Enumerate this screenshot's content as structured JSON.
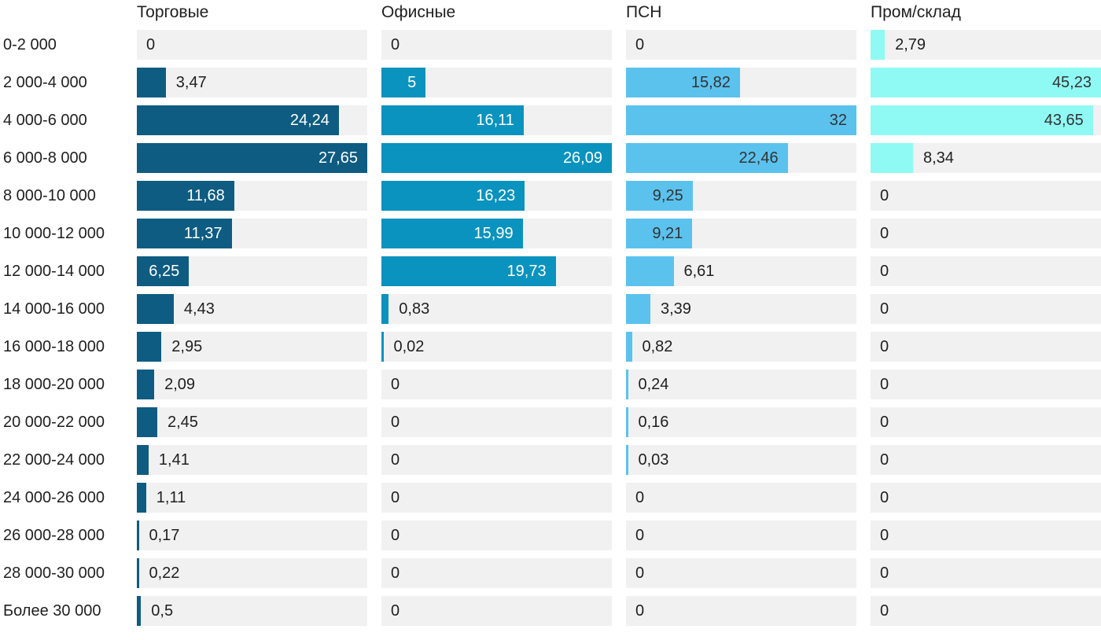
{
  "chart_data": {
    "type": "bar",
    "orientation": "horizontal",
    "title": "",
    "legend": "none",
    "grid": false,
    "decimal_separator": ",",
    "track_color": "#F1F1F1",
    "text_color": "#1F1F1F",
    "categories": [
      "0-2 000",
      "2 000-4 000",
      "4 000-6 000",
      "6 000-8 000",
      "8 000-10 000",
      "10 000-12 000",
      "12 000-14 000",
      "14 000-16 000",
      "16 000-18 000",
      "18 000-20 000",
      "20 000-22 000",
      "22 000-24 000",
      "24 000-26 000",
      "26 000-28 000",
      "28 000-30 000",
      "Более 30 000"
    ],
    "series": [
      {
        "name": "Торговые",
        "color": "#0E5C81",
        "inside_label_color": "#FFFFFF",
        "axis_max": 27.65,
        "values": [
          0,
          3.47,
          24.24,
          27.65,
          11.68,
          11.37,
          6.25,
          4.43,
          2.95,
          2.09,
          2.45,
          1.41,
          1.11,
          0.17,
          0.22,
          0.5
        ],
        "labels": [
          "0",
          "3,47",
          "24,24",
          "27,65",
          "11,68",
          "11,37",
          "6,25",
          "4,43",
          "2,95",
          "2,09",
          "2,45",
          "1,41",
          "1,11",
          "0,17",
          "0,22",
          "0,5"
        ]
      },
      {
        "name": "Офисные",
        "color": "#0A93BE",
        "inside_label_color": "#FFFFFF",
        "axis_max": 26.09,
        "values": [
          0,
          5,
          16.11,
          26.09,
          16.23,
          15.99,
          19.73,
          0.83,
          0.02,
          0,
          0,
          0,
          0,
          0,
          0,
          0
        ],
        "labels": [
          "0",
          "5",
          "16,11",
          "26,09",
          "16,23",
          "15,99",
          "19,73",
          "0,83",
          "0,02",
          "0",
          "0",
          "0",
          "0",
          "0",
          "0",
          "0"
        ]
      },
      {
        "name": "ПСН",
        "color": "#5BC2EE",
        "inside_label_color": "#333333",
        "axis_max": 32,
        "values": [
          0,
          15.82,
          32,
          22.46,
          9.25,
          9.21,
          6.61,
          3.39,
          0.82,
          0.24,
          0.16,
          0.03,
          0,
          0,
          0,
          0
        ],
        "labels": [
          "0",
          "15,82",
          "32",
          "22,46",
          "9,25",
          "9,21",
          "6,61",
          "3,39",
          "0,82",
          "0,24",
          "0,16",
          "0,03",
          "0",
          "0",
          "0",
          "0"
        ]
      },
      {
        "name": "Пром/склад",
        "color": "#8FFAF4",
        "inside_label_color": "#333333",
        "axis_max": 45.23,
        "values": [
          2.79,
          45.23,
          43.65,
          8.34,
          0,
          0,
          0,
          0,
          0,
          0,
          0,
          0,
          0,
          0,
          0,
          0
        ],
        "labels": [
          "2,79",
          "45,23",
          "43,65",
          "8,34",
          "0",
          "0",
          "0",
          "0",
          "0",
          "0",
          "0",
          "0",
          "0",
          "0",
          "0",
          "0"
        ]
      }
    ]
  }
}
